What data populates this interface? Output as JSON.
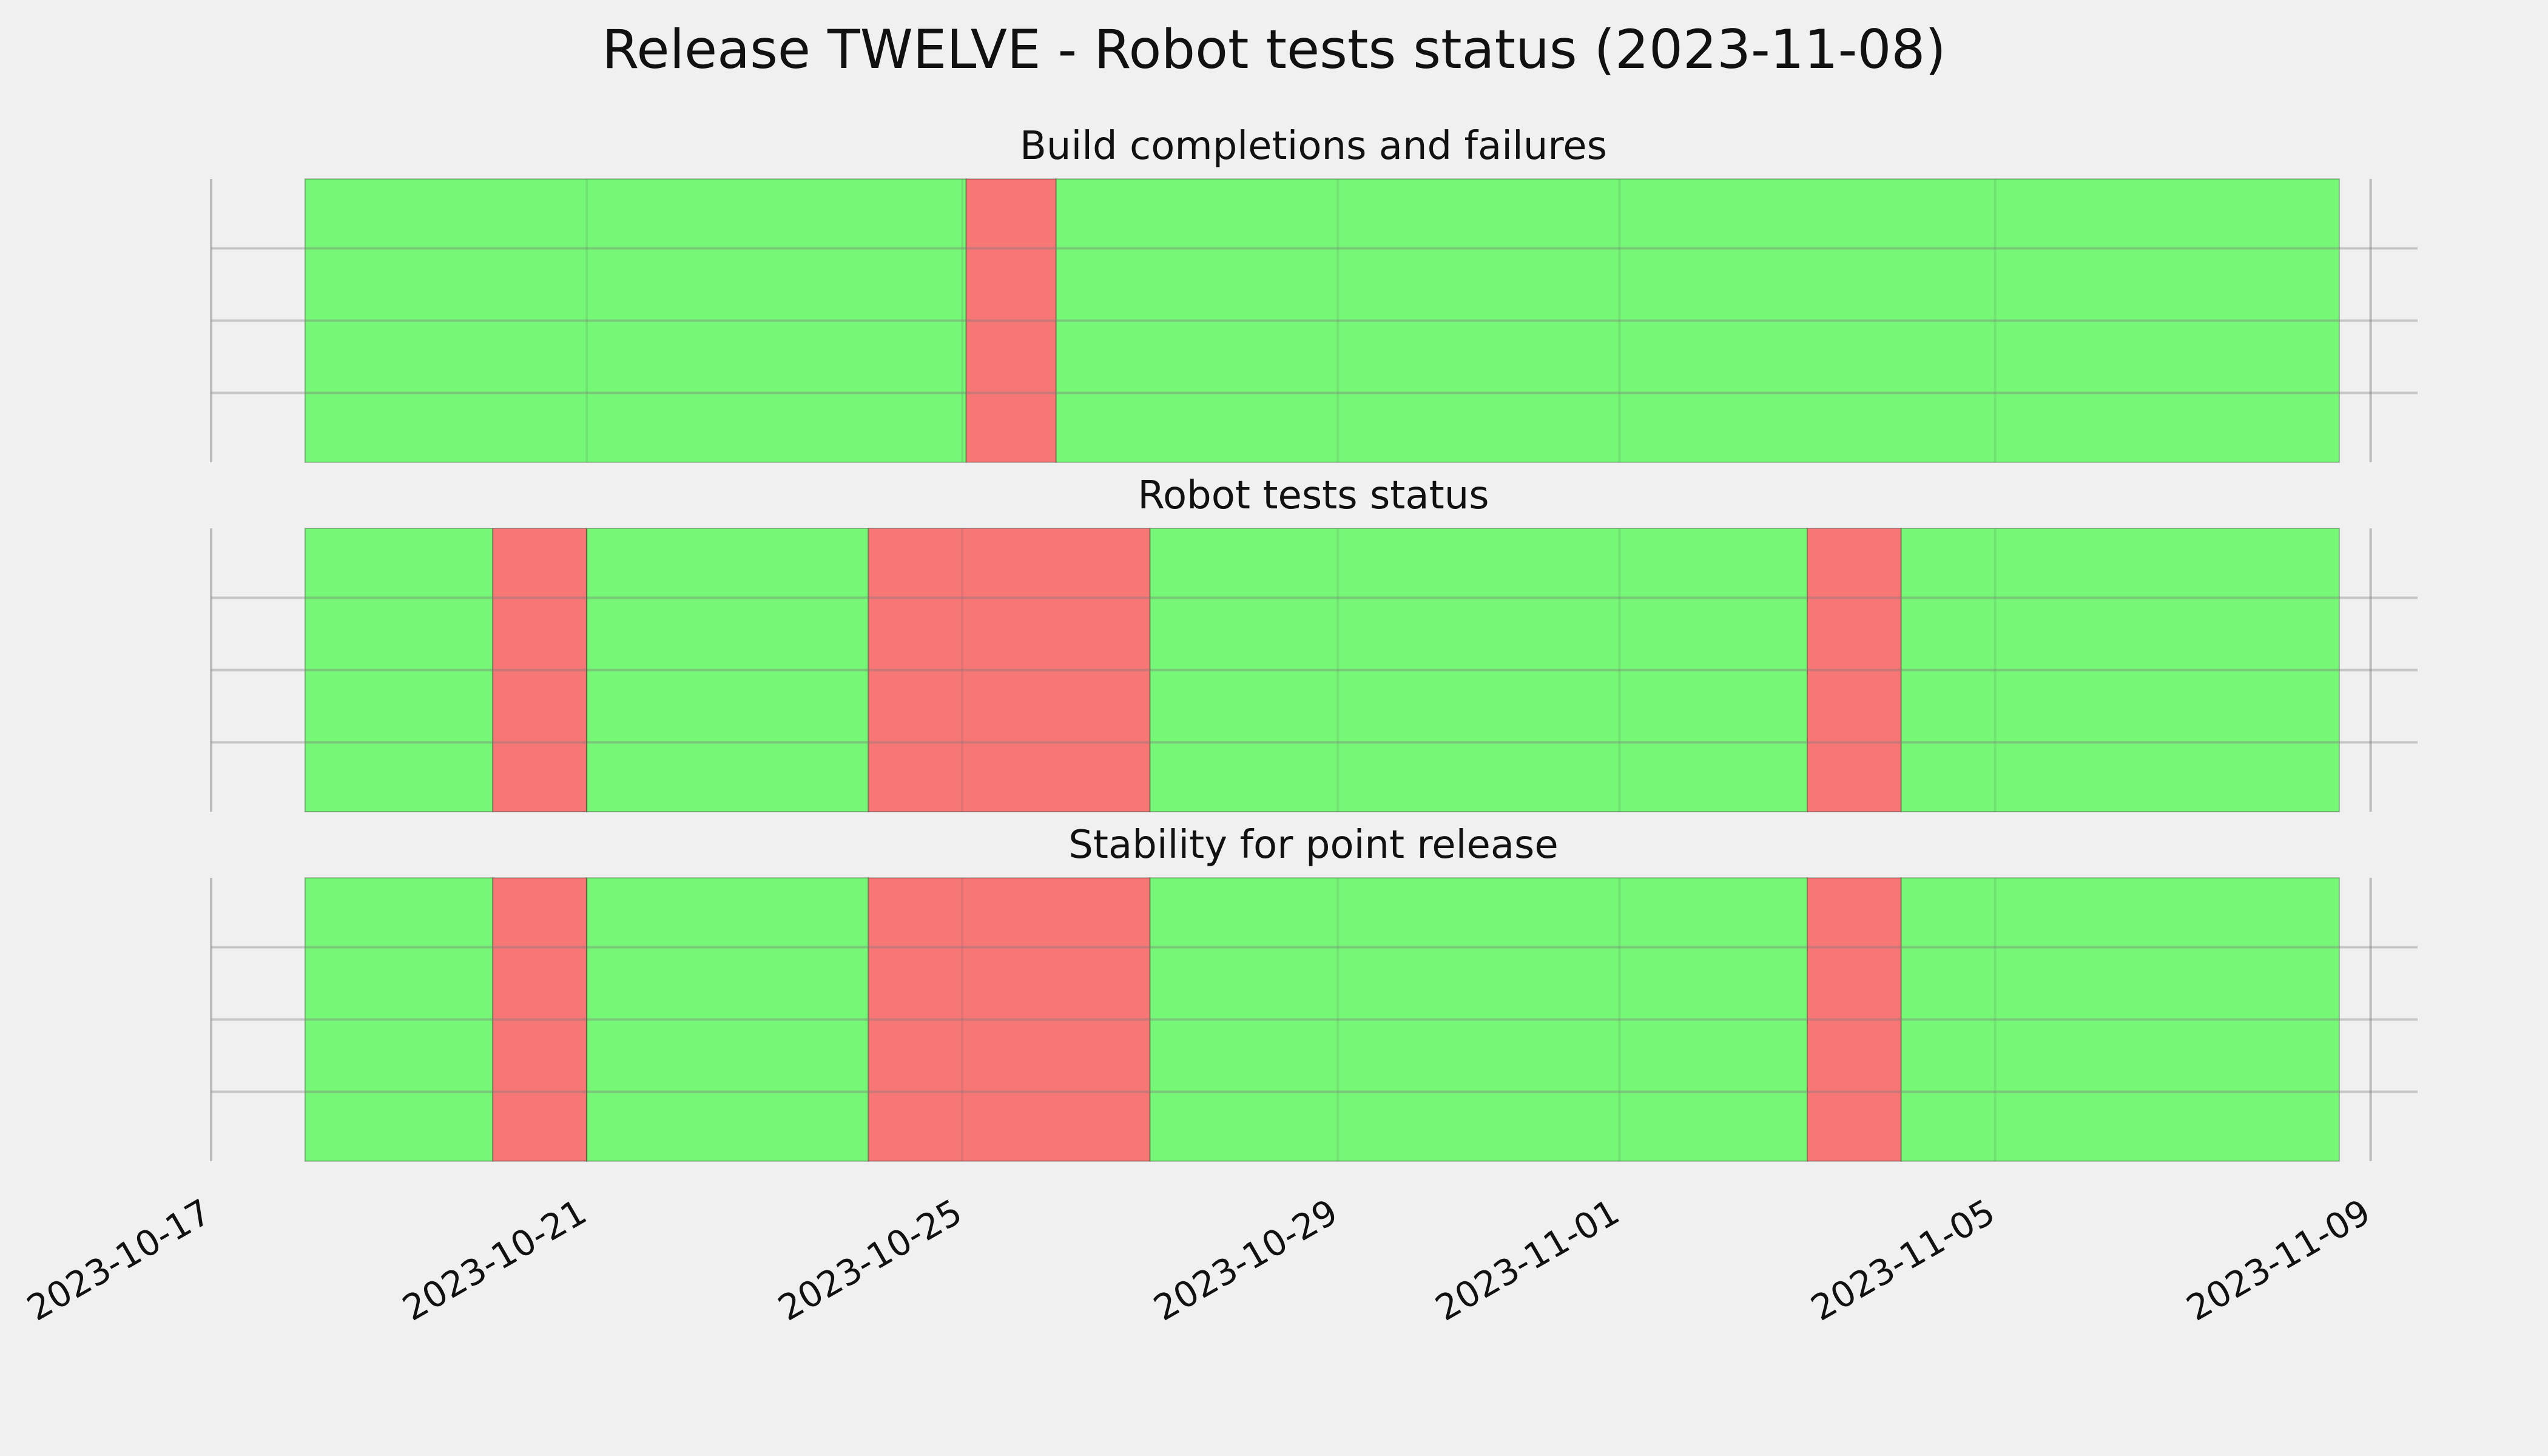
{
  "chart_data": {
    "type": "timeline-status",
    "title": "Release TWELVE - Robot tests status (2023-11-08)",
    "x_axis": {
      "type": "date",
      "range": [
        "2023-10-17",
        "2023-11-09T12:00"
      ],
      "tick_labels": [
        "2023-10-17",
        "2023-10-21",
        "2023-10-25",
        "2023-10-29",
        "2023-11-01",
        "2023-11-05",
        "2023-11-09"
      ],
      "tick_dates": [
        "2023-10-17",
        "2023-10-21",
        "2023-10-25",
        "2023-10-29",
        "2023-11-01",
        "2023-11-05",
        "2023-11-09"
      ]
    },
    "grid": true,
    "y_ticks_visible": false,
    "colors": {
      "pass": "#77f777",
      "fail": "#f77777",
      "background": "#f0f0f0",
      "grid": "#cbcbcb"
    },
    "panels": [
      {
        "title": "Build completions and failures",
        "segments": [
          {
            "start": "2023-10-18",
            "end": "2023-10-25T01:00",
            "status": "pass"
          },
          {
            "start": "2023-10-25T01:00",
            "end": "2023-10-26",
            "status": "fail"
          },
          {
            "start": "2023-10-26",
            "end": "2023-11-08T16:00",
            "status": "pass"
          }
        ]
      },
      {
        "title": "Robot tests status",
        "segments": [
          {
            "start": "2023-10-18",
            "end": "2023-10-20",
            "status": "pass"
          },
          {
            "start": "2023-10-20",
            "end": "2023-10-21",
            "status": "fail"
          },
          {
            "start": "2023-10-21",
            "end": "2023-10-24",
            "status": "pass"
          },
          {
            "start": "2023-10-24",
            "end": "2023-10-27",
            "status": "fail"
          },
          {
            "start": "2023-10-27",
            "end": "2023-11-03",
            "status": "pass"
          },
          {
            "start": "2023-11-03",
            "end": "2023-11-04",
            "status": "fail"
          },
          {
            "start": "2023-11-04",
            "end": "2023-11-08T16:00",
            "status": "pass"
          }
        ]
      },
      {
        "title": "Stability for point release",
        "segments": [
          {
            "start": "2023-10-18",
            "end": "2023-10-20",
            "status": "pass"
          },
          {
            "start": "2023-10-20",
            "end": "2023-10-21",
            "status": "fail"
          },
          {
            "start": "2023-10-21",
            "end": "2023-10-24",
            "status": "pass"
          },
          {
            "start": "2023-10-24",
            "end": "2023-10-27",
            "status": "fail"
          },
          {
            "start": "2023-10-27",
            "end": "2023-11-03",
            "status": "pass"
          },
          {
            "start": "2023-11-03",
            "end": "2023-11-04",
            "status": "fail"
          },
          {
            "start": "2023-11-04",
            "end": "2023-11-08T16:00",
            "status": "pass"
          }
        ]
      }
    ]
  }
}
